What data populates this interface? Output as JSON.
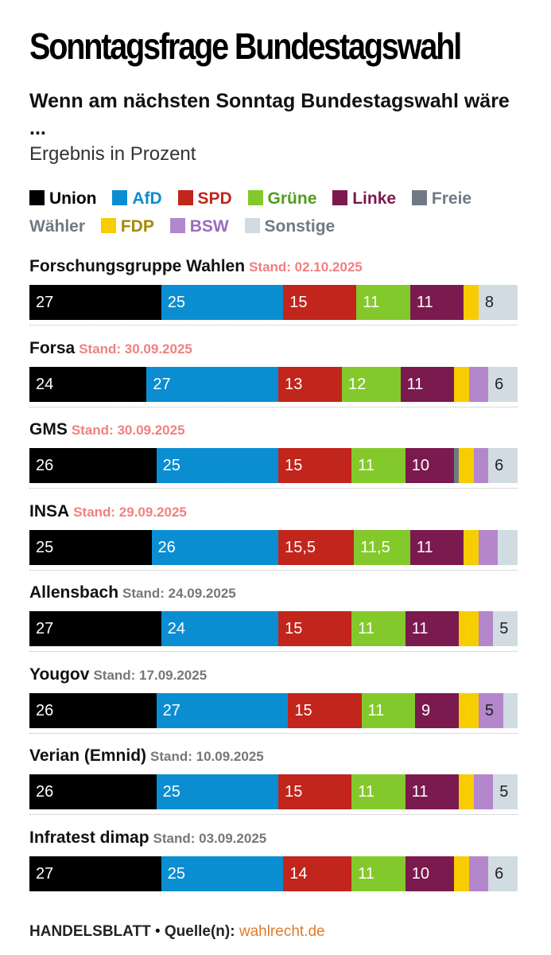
{
  "header": {
    "title": "Sonntagsfrage Bundestagswahl",
    "subtitle": "Wenn am nächsten Sonntag Bundestagswahl wäre ...",
    "unit_note": "Ergebnis in Prozent"
  },
  "colors": {
    "union": "#000000",
    "afd": "#0b8ed1",
    "spd": "#c1251b",
    "gruene": "#84c92b",
    "linke": "#7b1a4f",
    "freie_waehler": "#6f7a85",
    "fdp": "#f7cd00",
    "bsw": "#b486cc",
    "sonstige": "#d1dbe2",
    "stand_recent": "#f08080",
    "stand_older": "#777777"
  },
  "chart_data": {
    "type": "bar",
    "orientation": "horizontal-stacked",
    "title": "Sonntagsfrage Bundestagswahl",
    "subtitle": "Wenn am nächsten Sonntag Bundestagswahl wäre ...",
    "unit": "Ergebnis in Prozent",
    "xlim": [
      0,
      100
    ],
    "legend_position": "top",
    "parties": [
      {
        "key": "union",
        "name": "Union",
        "legend_color": "#000000"
      },
      {
        "key": "afd",
        "name": "AfD",
        "legend_color": "#0b8ed1"
      },
      {
        "key": "spd",
        "name": "SPD",
        "legend_color": "#c1251b"
      },
      {
        "key": "gruene",
        "name": "Grüne",
        "legend_color": "#4f9d1c"
      },
      {
        "key": "linke",
        "name": "Linke",
        "legend_color": "#7b1a4f"
      },
      {
        "key": "freie_waehler",
        "name": "Freie Wähler",
        "legend_color": "#6f7a85"
      },
      {
        "key": "fdp",
        "name": "FDP",
        "legend_color": "#a68800"
      },
      {
        "key": "bsw",
        "name": "BSW",
        "legend_color": "#9b6bbf"
      },
      {
        "key": "sonstige",
        "name": "Sonstige",
        "legend_color": "#6f7a85"
      }
    ],
    "polls": [
      {
        "institute": "Forschungsgruppe Wahlen",
        "stand": "Stand: 02.10.2025",
        "recent": true,
        "values": {
          "union": 27,
          "afd": 25,
          "spd": 15,
          "gruene": 11,
          "linke": 11,
          "freie_waehler": 0,
          "fdp": 3,
          "bsw": 0,
          "sonstige": 8
        },
        "labels": {
          "union": "27",
          "afd": "25",
          "spd": "15",
          "gruene": "11",
          "linke": "11",
          "sonstige": "8"
        }
      },
      {
        "institute": "Forsa",
        "stand": "Stand: 30.09.2025",
        "recent": true,
        "values": {
          "union": 24,
          "afd": 27,
          "spd": 13,
          "gruene": 12,
          "linke": 11,
          "freie_waehler": 0,
          "fdp": 3,
          "bsw": 4,
          "sonstige": 6
        },
        "labels": {
          "union": "24",
          "afd": "27",
          "spd": "13",
          "gruene": "12",
          "linke": "11",
          "sonstige": "6"
        }
      },
      {
        "institute": "GMS",
        "stand": "Stand: 30.09.2025",
        "recent": true,
        "values": {
          "union": 26,
          "afd": 25,
          "spd": 15,
          "gruene": 11,
          "linke": 10,
          "freie_waehler": 1,
          "fdp": 3,
          "bsw": 3,
          "sonstige": 6
        },
        "labels": {
          "union": "26",
          "afd": "25",
          "spd": "15",
          "gruene": "11",
          "linke": "10",
          "sonstige": "6"
        }
      },
      {
        "institute": "INSA",
        "stand": "Stand: 29.09.2025",
        "recent": true,
        "values": {
          "union": 25,
          "afd": 26,
          "spd": 15.5,
          "gruene": 11.5,
          "linke": 11,
          "freie_waehler": 0,
          "fdp": 3,
          "bsw": 4,
          "sonstige": 4
        },
        "labels": {
          "union": "25",
          "afd": "26",
          "spd": "15,5",
          "gruene": "11,5",
          "linke": "11"
        }
      },
      {
        "institute": "Allensbach",
        "stand": "Stand: 24.09.2025",
        "recent": false,
        "values": {
          "union": 27,
          "afd": 24,
          "spd": 15,
          "gruene": 11,
          "linke": 11,
          "freie_waehler": 0,
          "fdp": 4,
          "bsw": 3,
          "sonstige": 5
        },
        "labels": {
          "union": "27",
          "afd": "24",
          "spd": "15",
          "gruene": "11",
          "linke": "11",
          "sonstige": "5"
        }
      },
      {
        "institute": "Yougov",
        "stand": "Stand: 17.09.2025",
        "recent": false,
        "values": {
          "union": 26,
          "afd": 27,
          "spd": 15,
          "gruene": 11,
          "linke": 9,
          "freie_waehler": 0,
          "fdp": 4,
          "bsw": 5,
          "sonstige": 3
        },
        "labels": {
          "union": "26",
          "afd": "27",
          "spd": "15",
          "gruene": "11",
          "linke": "9",
          "bsw": "5"
        }
      },
      {
        "institute": "Verian (Emnid)",
        "stand": "Stand: 10.09.2025",
        "recent": false,
        "values": {
          "union": 26,
          "afd": 25,
          "spd": 15,
          "gruene": 11,
          "linke": 11,
          "freie_waehler": 0,
          "fdp": 3,
          "bsw": 4,
          "sonstige": 5
        },
        "labels": {
          "union": "26",
          "afd": "25",
          "spd": "15",
          "gruene": "11",
          "linke": "11",
          "sonstige": "5"
        }
      },
      {
        "institute": "Infratest dimap",
        "stand": "Stand: 03.09.2025",
        "recent": false,
        "values": {
          "union": 27,
          "afd": 25,
          "spd": 14,
          "gruene": 11,
          "linke": 10,
          "freie_waehler": 0,
          "fdp": 3,
          "bsw": 4,
          "sonstige": 6
        },
        "labels": {
          "union": "27",
          "afd": "25",
          "spd": "14",
          "gruene": "11",
          "linke": "10",
          "sonstige": "6"
        }
      }
    ]
  },
  "footer": {
    "brand": "HANDELSBLATT",
    "separator": "•",
    "source_label": "Quelle(n):",
    "source_link": "wahlrecht.de"
  }
}
